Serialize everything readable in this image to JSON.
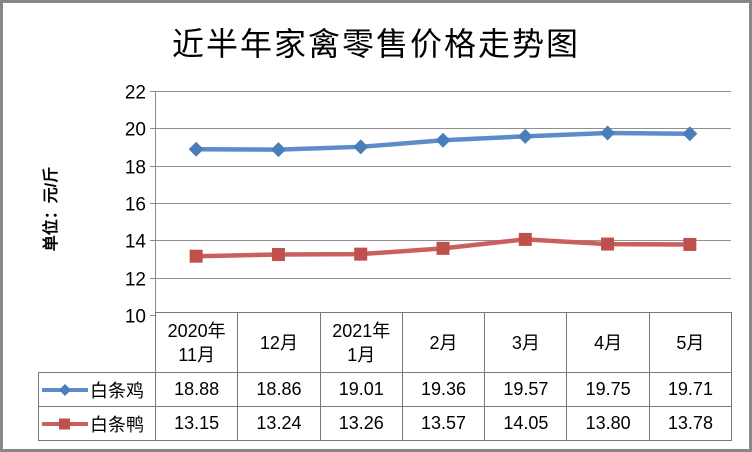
{
  "title": "近半年家禽零售价格走势图",
  "y_axis_label": "单位：元/斤",
  "chart_data": {
    "type": "line",
    "title": "近半年家禽零售价格走势图",
    "ylabel": "单位：元/斤",
    "xlabel": "",
    "categories": [
      "2020年11月",
      "12月",
      "2021年1月",
      "2月",
      "3月",
      "4月",
      "5月"
    ],
    "x_header_lines": [
      [
        "2020年",
        "11月"
      ],
      [
        "12月"
      ],
      [
        "2021年",
        "1月"
      ],
      [
        "2月"
      ],
      [
        "3月"
      ],
      [
        "4月"
      ],
      [
        "5月"
      ]
    ],
    "series": [
      {
        "name": "白条鸡",
        "marker": "diamond",
        "marker_color": "#4a7ebb",
        "line_color": "#5e8cc9",
        "values": [
          18.88,
          18.86,
          19.01,
          19.36,
          19.57,
          19.75,
          19.71
        ],
        "display_values": [
          "18.88",
          "18.86",
          "19.01",
          "19.36",
          "19.57",
          "19.75",
          "19.71"
        ]
      },
      {
        "name": "白条鸭",
        "marker": "square",
        "marker_color": "#c0504d",
        "line_color": "#c9605d",
        "values": [
          13.15,
          13.24,
          13.26,
          13.57,
          14.05,
          13.8,
          13.78
        ],
        "display_values": [
          "13.15",
          "13.24",
          "13.26",
          "13.57",
          "14.05",
          "13.80",
          "13.78"
        ]
      }
    ],
    "ylim": [
      10,
      22
    ],
    "y_ticks": [
      22,
      20,
      18,
      16,
      14,
      12,
      10
    ],
    "grid": true,
    "gridline_color": "#909090",
    "axis_color": "#8a8a8a",
    "legend_position": "table-left"
  },
  "table": {
    "border_color": "#787878"
  },
  "frame": {
    "border_color": "#878787",
    "background_color": "#ffffff"
  }
}
